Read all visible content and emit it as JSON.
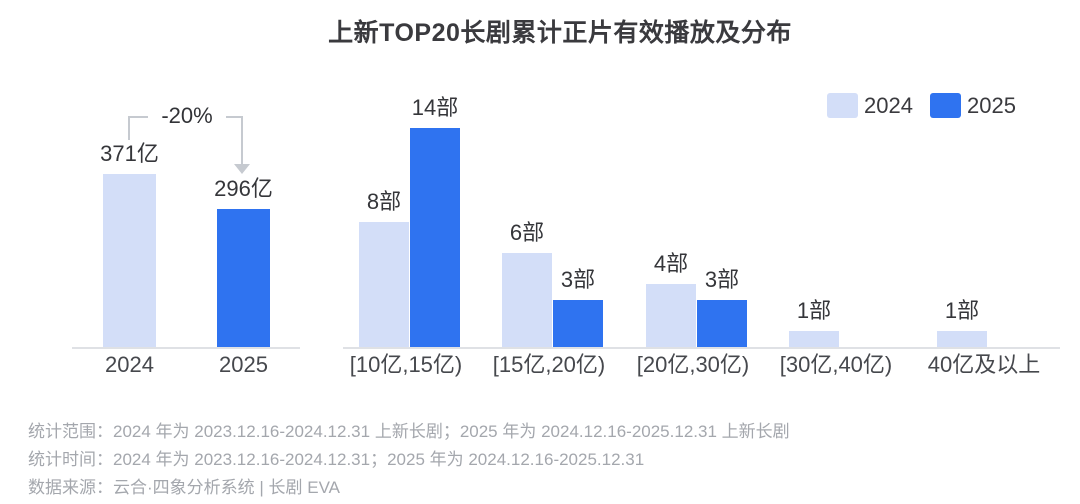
{
  "title": "上新TOP20长剧累计正片有效播放及分布",
  "legend": {
    "position": "top-right",
    "items": [
      {
        "label": "2024",
        "color": "#d3def8"
      },
      {
        "label": "2025",
        "color": "#2f73f0"
      }
    ]
  },
  "colors": {
    "bar_2024": "#d3def8",
    "bar_2025": "#2f73f0",
    "axis_line": "#dfe1e5",
    "annotation_line": "#c6cad0",
    "label_text": "#35363a",
    "tick_text": "#46484d",
    "footer_text": "#a4a7ad"
  },
  "chart_data": [
    {
      "type": "bar",
      "name": "total-effective-plays",
      "categories": [
        "2024",
        "2025"
      ],
      "values": [
        371,
        296
      ],
      "value_labels": [
        "371亿",
        "296亿"
      ],
      "unit": "亿",
      "annotation": "-20%",
      "bar_colors": [
        "#d3def8",
        "#2f73f0"
      ],
      "ylim": [
        0,
        400
      ],
      "grid": false
    },
    {
      "type": "bar",
      "name": "plays-distribution",
      "categories": [
        "[10亿,15亿)",
        "[15亿,20亿)",
        "[20亿,30亿)",
        "[30亿,40亿)",
        "40亿及以上"
      ],
      "series": [
        {
          "name": "2024",
          "color": "#d3def8",
          "values": [
            8,
            6,
            4,
            1,
            1
          ],
          "value_labels": [
            "8部",
            "6部",
            "4部",
            "1部",
            "1部"
          ]
        },
        {
          "name": "2025",
          "color": "#2f73f0",
          "values": [
            14,
            3,
            3,
            0,
            0
          ],
          "value_labels": [
            "14部",
            "3部",
            "3部",
            "",
            ""
          ]
        }
      ],
      "unit": "部",
      "ylim": [
        0,
        15
      ],
      "grid": false,
      "legend_position": "top-right"
    }
  ],
  "footer": {
    "lines": [
      "统计范围：2024 年为 2023.12.16-2024.12.31 上新长剧；2025 年为 2024.12.16-2025.12.31 上新长剧",
      "统计时间：2024 年为 2023.12.16-2024.12.31；2025 年为 2024.12.16-2025.12.31",
      "数据来源：云合·四象分析系统 | 长剧 EVA"
    ]
  }
}
